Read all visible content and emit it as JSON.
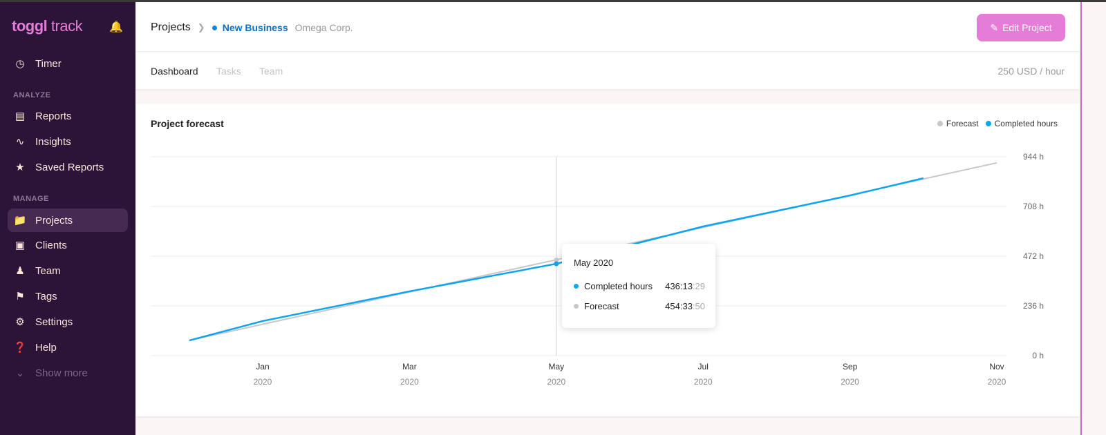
{
  "sidebar": {
    "logo": {
      "brand": "toggl",
      "product": "track"
    },
    "notifications_icon": "bell-icon",
    "timer": {
      "label": "Timer",
      "icon": "clock-icon"
    },
    "analyze_heading": "ANALYZE",
    "analyze": [
      {
        "label": "Reports",
        "icon": "report-icon"
      },
      {
        "label": "Insights",
        "icon": "insights-icon"
      },
      {
        "label": "Saved Reports",
        "icon": "star-icon"
      }
    ],
    "manage_heading": "MANAGE",
    "manage": [
      {
        "label": "Projects",
        "icon": "folder-icon",
        "active": true
      },
      {
        "label": "Clients",
        "icon": "client-icon"
      },
      {
        "label": "Team",
        "icon": "team-icon"
      },
      {
        "label": "Tags",
        "icon": "tag-icon"
      },
      {
        "label": "Settings",
        "icon": "gear-icon"
      },
      {
        "label": "Help",
        "icon": "help-icon"
      }
    ],
    "show_more": "Show more"
  },
  "header": {
    "breadcrumb_root": "Projects",
    "project": "New Business",
    "project_color": "#0b83d9",
    "client": "Omega Corp.",
    "edit_button": "Edit Project",
    "accent": "#e57cd8"
  },
  "tabs": [
    {
      "label": "Dashboard",
      "active": true
    },
    {
      "label": "Tasks"
    },
    {
      "label": "Team"
    }
  ],
  "rate": "250 USD / hour",
  "card": {
    "title": "Project forecast"
  },
  "chart_data": {
    "type": "line",
    "title": "Project forecast",
    "legend": [
      "Forecast",
      "Completed hours"
    ],
    "legend_placement": "top-right",
    "x_ticks": [
      {
        "month": "Jan",
        "year": "2020",
        "x": "2020-01"
      },
      {
        "month": "Mar",
        "year": "2020",
        "x": "2020-03"
      },
      {
        "month": "May",
        "year": "2020",
        "x": "2020-05"
      },
      {
        "month": "Jul",
        "year": "2020",
        "x": "2020-07"
      },
      {
        "month": "Sep",
        "year": "2020",
        "x": "2020-09"
      },
      {
        "month": "Nov",
        "year": "2020",
        "x": "2020-11"
      }
    ],
    "y_ticks": [
      "0 h",
      "236 h",
      "472 h",
      "708 h",
      "944 h"
    ],
    "y_tick_values": [
      0,
      236,
      472,
      708,
      944
    ],
    "ylim": [
      0,
      944
    ],
    "grid": true,
    "series": [
      {
        "name": "Forecast",
        "color": "#c8c8c8",
        "points": [
          [
            "2019-12",
            72
          ],
          [
            "2020-11",
            915
          ]
        ]
      },
      {
        "name": "Completed hours",
        "color": "#0ea5f0",
        "points": [
          [
            "2019-12",
            72
          ],
          [
            "2020-01",
            164
          ],
          [
            "2020-03",
            305
          ],
          [
            "2020-05",
            436
          ],
          [
            "2020-07",
            613
          ],
          [
            "2020-09",
            760
          ],
          [
            "2020-10",
            842
          ]
        ]
      }
    ],
    "tooltip": {
      "title": "May 2020",
      "rows": [
        {
          "label": "Completed hours",
          "main": "436:13",
          "sec": ":29",
          "color": "#0ea5f0"
        },
        {
          "label": "Forecast",
          "main": "454:33",
          "sec": ":50",
          "color": "#c8c8c8"
        }
      ]
    }
  }
}
